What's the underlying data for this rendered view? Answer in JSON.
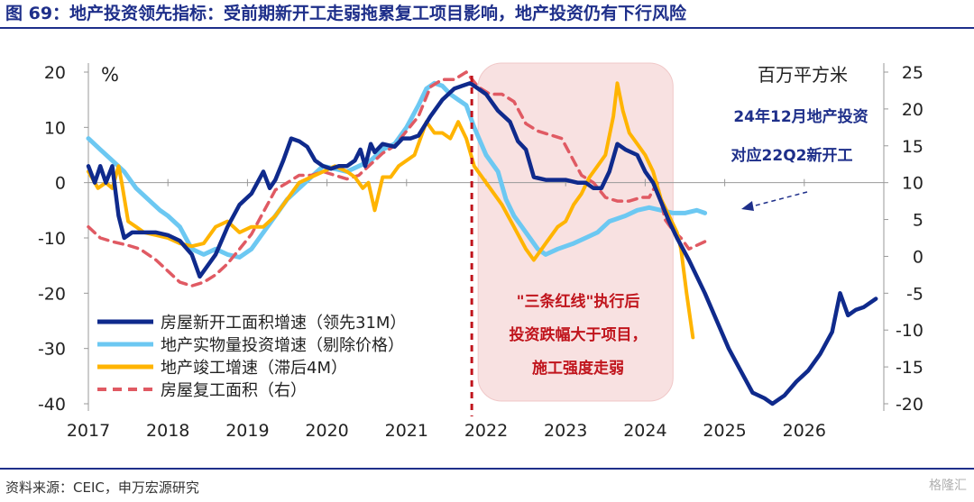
{
  "title": "图 69：地产投资领先指标：受前期新开工走弱拖累复工项目影响，地产投资仍有下行风险",
  "source": "资料来源：CEIC，申万宏源研究",
  "watermark": "格隆汇",
  "chart_data": {
    "type": "line",
    "left_unit": "%",
    "right_unit": "百万平方米",
    "ylim_left": [
      -40,
      20
    ],
    "ylim_right": [
      -20,
      25
    ],
    "y_ticks_left": [
      "20",
      "10",
      "0",
      "-10",
      "-20",
      "-30",
      "-40"
    ],
    "y_ticks_right": [
      "25",
      "20",
      "15",
      "10",
      "5",
      "0",
      "-5",
      "-10",
      "-15",
      "-20"
    ],
    "x_ticks": [
      "2017",
      "2018",
      "2019",
      "2020",
      "2021",
      "2022",
      "2023",
      "2024",
      "2025",
      "2026"
    ],
    "grid": false,
    "legend_position": "bottom-left",
    "colors": {
      "new_start": "#0f2a8c",
      "fixed_asset": "#6cc8f2",
      "completion": "#ffb400",
      "resumed": "#e05a63",
      "marker": "#c0141c",
      "shade": "#f8e1e1"
    },
    "series": [
      {
        "name": "房屋新开工面积增速（领先31M）",
        "axis": "left",
        "points": [
          [
            2017.0,
            3
          ],
          [
            2017.08,
            0
          ],
          [
            2017.15,
            3
          ],
          [
            2017.22,
            0
          ],
          [
            2017.3,
            3
          ],
          [
            2017.38,
            -6
          ],
          [
            2017.45,
            -10
          ],
          [
            2017.55,
            -9
          ],
          [
            2017.7,
            -9
          ],
          [
            2017.85,
            -9
          ],
          [
            2018.0,
            -9.5
          ],
          [
            2018.15,
            -10.5
          ],
          [
            2018.3,
            -13
          ],
          [
            2018.4,
            -17
          ],
          [
            2018.5,
            -15
          ],
          [
            2018.6,
            -13
          ],
          [
            2018.75,
            -8
          ],
          [
            2018.9,
            -4
          ],
          [
            2019.05,
            -2
          ],
          [
            2019.2,
            2
          ],
          [
            2019.28,
            -1
          ],
          [
            2019.35,
            0.5
          ],
          [
            2019.45,
            4
          ],
          [
            2019.55,
            8
          ],
          [
            2019.65,
            7.5
          ],
          [
            2019.75,
            6.5
          ],
          [
            2019.85,
            4
          ],
          [
            2019.95,
            3
          ],
          [
            2020.05,
            2.5
          ],
          [
            2020.15,
            3
          ],
          [
            2020.25,
            3
          ],
          [
            2020.35,
            4
          ],
          [
            2020.42,
            6
          ],
          [
            2020.48,
            3
          ],
          [
            2020.55,
            7
          ],
          [
            2020.6,
            5.5
          ],
          [
            2020.7,
            7
          ],
          [
            2020.85,
            6.5
          ],
          [
            2020.95,
            8
          ],
          [
            2021.05,
            8
          ],
          [
            2021.15,
            8.5
          ],
          [
            2021.3,
            12
          ],
          [
            2021.45,
            15
          ],
          [
            2021.6,
            17
          ],
          [
            2021.7,
            17.5
          ],
          [
            2021.8,
            18
          ],
          [
            2021.9,
            17
          ],
          [
            2022.0,
            16
          ],
          [
            2022.15,
            13
          ],
          [
            2022.3,
            11
          ],
          [
            2022.4,
            7.5
          ],
          [
            2022.5,
            6
          ],
          [
            2022.6,
            1
          ],
          [
            2022.75,
            0.5
          ],
          [
            2022.9,
            0.5
          ],
          [
            2023.0,
            0.5
          ],
          [
            2023.15,
            0
          ],
          [
            2023.25,
            0
          ],
          [
            2023.35,
            -1
          ],
          [
            2023.45,
            -1
          ],
          [
            2023.55,
            2
          ],
          [
            2023.65,
            7
          ],
          [
            2023.75,
            6
          ],
          [
            2023.9,
            5
          ],
          [
            2024.0,
            2
          ],
          [
            2024.1,
            0
          ],
          [
            2024.3,
            -7
          ],
          [
            2024.4,
            -10
          ],
          [
            2024.55,
            -14
          ],
          [
            2024.75,
            -20
          ],
          [
            2024.9,
            -25
          ],
          [
            2025.05,
            -30
          ],
          [
            2025.2,
            -34
          ],
          [
            2025.35,
            -38
          ],
          [
            2025.5,
            -39
          ],
          [
            2025.6,
            -40
          ],
          [
            2025.75,
            -38.5
          ],
          [
            2025.9,
            -36
          ],
          [
            2026.05,
            -34
          ],
          [
            2026.2,
            -31
          ],
          [
            2026.35,
            -27
          ],
          [
            2026.45,
            -20
          ],
          [
            2026.55,
            -24
          ],
          [
            2026.65,
            -23
          ],
          [
            2026.75,
            -22.5
          ],
          [
            2026.9,
            -21
          ]
        ]
      },
      {
        "name": "地产实物量投资增速（剔除价格）",
        "axis": "left",
        "points": [
          [
            2017.0,
            8
          ],
          [
            2017.15,
            6
          ],
          [
            2017.3,
            4
          ],
          [
            2017.45,
            2
          ],
          [
            2017.6,
            -1
          ],
          [
            2017.75,
            -3
          ],
          [
            2017.9,
            -5
          ],
          [
            2018.0,
            -6
          ],
          [
            2018.15,
            -8
          ],
          [
            2018.3,
            -12
          ],
          [
            2018.45,
            -13
          ],
          [
            2018.6,
            -12
          ],
          [
            2018.75,
            -13
          ],
          [
            2018.9,
            -13.5
          ],
          [
            2019.05,
            -12
          ],
          [
            2019.2,
            -9
          ],
          [
            2019.35,
            -6
          ],
          [
            2019.5,
            -3
          ],
          [
            2019.65,
            -1
          ],
          [
            2019.8,
            1
          ],
          [
            2019.95,
            3
          ],
          [
            2020.1,
            2.5
          ],
          [
            2020.25,
            2
          ],
          [
            2020.4,
            3
          ],
          [
            2020.55,
            4
          ],
          [
            2020.7,
            6
          ],
          [
            2020.85,
            7
          ],
          [
            2021.0,
            10
          ],
          [
            2021.15,
            14
          ],
          [
            2021.25,
            17
          ],
          [
            2021.35,
            18
          ],
          [
            2021.45,
            17.5
          ],
          [
            2021.55,
            16
          ],
          [
            2021.65,
            15
          ],
          [
            2021.75,
            14
          ],
          [
            2021.85,
            10
          ],
          [
            2022.0,
            5
          ],
          [
            2022.15,
            2
          ],
          [
            2022.25,
            -3
          ],
          [
            2022.35,
            -6
          ],
          [
            2022.45,
            -8
          ],
          [
            2022.55,
            -10
          ],
          [
            2022.65,
            -12
          ],
          [
            2022.75,
            -13
          ],
          [
            2022.9,
            -12
          ],
          [
            2023.1,
            -11
          ],
          [
            2023.25,
            -10
          ],
          [
            2023.4,
            -9
          ],
          [
            2023.55,
            -7
          ],
          [
            2023.75,
            -6
          ],
          [
            2023.9,
            -5
          ],
          [
            2024.05,
            -4.5
          ],
          [
            2024.2,
            -5
          ],
          [
            2024.35,
            -5.5
          ],
          [
            2024.5,
            -5.5
          ],
          [
            2024.65,
            -5
          ],
          [
            2024.75,
            -5.5
          ]
        ]
      },
      {
        "name": "地产竣工增速（滞后4M）",
        "axis": "left",
        "points": [
          [
            2017.0,
            2
          ],
          [
            2017.12,
            -1
          ],
          [
            2017.22,
            0
          ],
          [
            2017.3,
            -1
          ],
          [
            2017.38,
            3
          ],
          [
            2017.42,
            0
          ],
          [
            2017.5,
            -7
          ],
          [
            2017.6,
            -8
          ],
          [
            2017.7,
            -9
          ],
          [
            2017.85,
            -9.5
          ],
          [
            2018.0,
            -10
          ],
          [
            2018.15,
            -11
          ],
          [
            2018.3,
            -11.5
          ],
          [
            2018.45,
            -11
          ],
          [
            2018.6,
            -8
          ],
          [
            2018.75,
            -7
          ],
          [
            2018.9,
            -9
          ],
          [
            2019.05,
            -8
          ],
          [
            2019.2,
            -8
          ],
          [
            2019.35,
            -6
          ],
          [
            2019.5,
            -3
          ],
          [
            2019.65,
            0
          ],
          [
            2019.8,
            1
          ],
          [
            2019.95,
            2
          ],
          [
            2020.1,
            3
          ],
          [
            2020.25,
            2
          ],
          [
            2020.35,
            1
          ],
          [
            2020.45,
            -1
          ],
          [
            2020.52,
            0
          ],
          [
            2020.6,
            -5
          ],
          [
            2020.7,
            1
          ],
          [
            2020.8,
            1
          ],
          [
            2020.9,
            3
          ],
          [
            2021.0,
            4
          ],
          [
            2021.1,
            5
          ],
          [
            2021.25,
            11
          ],
          [
            2021.35,
            9
          ],
          [
            2021.45,
            9
          ],
          [
            2021.55,
            8
          ],
          [
            2021.65,
            11
          ],
          [
            2021.75,
            8
          ],
          [
            2021.85,
            3
          ],
          [
            2022.0,
            0
          ],
          [
            2022.2,
            -4
          ],
          [
            2022.35,
            -8
          ],
          [
            2022.5,
            -12
          ],
          [
            2022.6,
            -14
          ],
          [
            2022.75,
            -11
          ],
          [
            2022.9,
            -8
          ],
          [
            2023.0,
            -7
          ],
          [
            2023.1,
            -4
          ],
          [
            2023.2,
            -2
          ],
          [
            2023.3,
            1
          ],
          [
            2023.4,
            3
          ],
          [
            2023.5,
            5
          ],
          [
            2023.6,
            12
          ],
          [
            2023.65,
            18
          ],
          [
            2023.72,
            13
          ],
          [
            2023.8,
            9
          ],
          [
            2023.9,
            7
          ],
          [
            2024.0,
            5
          ],
          [
            2024.1,
            2
          ],
          [
            2024.2,
            -3
          ],
          [
            2024.3,
            -6
          ],
          [
            2024.4,
            -9
          ],
          [
            2024.45,
            -12
          ],
          [
            2024.52,
            -20
          ],
          [
            2024.6,
            -28
          ]
        ]
      },
      {
        "name": "房屋复工面积（右）",
        "axis": "right",
        "points": [
          [
            2017.0,
            4
          ],
          [
            2017.15,
            2.5
          ],
          [
            2017.3,
            2
          ],
          [
            2017.5,
            1.5
          ],
          [
            2017.65,
            1
          ],
          [
            2017.85,
            -0.5
          ],
          [
            2018.0,
            -2
          ],
          [
            2018.15,
            -3.5
          ],
          [
            2018.3,
            -4
          ],
          [
            2018.45,
            -3.5
          ],
          [
            2018.6,
            -2.5
          ],
          [
            2018.75,
            -1
          ],
          [
            2018.9,
            1
          ],
          [
            2019.05,
            3
          ],
          [
            2019.2,
            6
          ],
          [
            2019.35,
            9
          ],
          [
            2019.5,
            10
          ],
          [
            2019.65,
            11
          ],
          [
            2019.8,
            11
          ],
          [
            2019.95,
            11.5
          ],
          [
            2020.1,
            11
          ],
          [
            2020.25,
            10.5
          ],
          [
            2020.4,
            11
          ],
          [
            2020.55,
            12.5
          ],
          [
            2020.7,
            14
          ],
          [
            2020.85,
            15
          ],
          [
            2021.0,
            17
          ],
          [
            2021.15,
            19
          ],
          [
            2021.3,
            23
          ],
          [
            2021.45,
            24
          ],
          [
            2021.6,
            24
          ],
          [
            2021.75,
            25
          ],
          [
            2021.9,
            23
          ],
          [
            2022.05,
            22
          ],
          [
            2022.2,
            22
          ],
          [
            2022.35,
            21
          ],
          [
            2022.5,
            18
          ],
          [
            2022.65,
            17
          ],
          [
            2022.8,
            16.5
          ],
          [
            2022.95,
            16
          ],
          [
            2023.05,
            14
          ],
          [
            2023.2,
            11
          ],
          [
            2023.35,
            10
          ],
          [
            2023.5,
            8
          ],
          [
            2023.65,
            7.5
          ],
          [
            2023.8,
            7.5
          ],
          [
            2023.95,
            8
          ],
          [
            2024.05,
            8
          ],
          [
            2024.15,
            10
          ],
          [
            2024.25,
            5
          ],
          [
            2024.35,
            3.5
          ],
          [
            2024.45,
            2.5
          ],
          [
            2024.55,
            1
          ],
          [
            2024.65,
            1.5
          ],
          [
            2024.75,
            2
          ]
        ]
      }
    ],
    "annotations": {
      "callout_top": "24年12月地产投资",
      "callout_bottom": "对应22Q2新开工",
      "policy_lines": [
        "\"三条红线\"执行后",
        "投资跌幅大于项目，",
        "施工强度走弱"
      ]
    },
    "policy_line_x": 2021.82,
    "shade_x": [
      2021.9,
      2024.35
    ]
  }
}
